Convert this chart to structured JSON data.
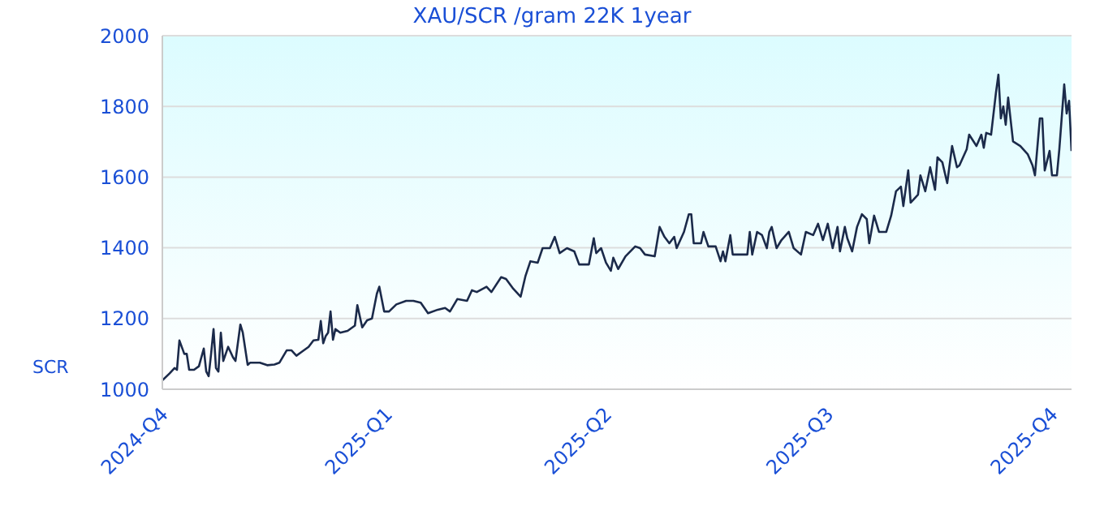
{
  "chart_data": {
    "type": "line",
    "title": "XAU/SCR /gram 22K 1year",
    "ylabel": "SCR",
    "x": [
      "2024-10-01",
      "2024-10-04",
      "2024-10-06",
      "2024-10-07",
      "2024-10-08",
      "2024-10-10",
      "2024-10-11",
      "2024-10-12",
      "2024-10-14",
      "2024-10-16",
      "2024-10-18",
      "2024-10-19",
      "2024-10-20",
      "2024-10-21",
      "2024-10-22",
      "2024-10-23",
      "2024-10-24",
      "2024-10-25",
      "2024-10-26",
      "2024-10-28",
      "2024-10-30",
      "2024-10-31",
      "2024-11-02",
      "2024-11-03",
      "2024-11-05",
      "2024-11-06",
      "2024-11-10",
      "2024-11-13",
      "2024-11-16",
      "2024-11-18",
      "2024-11-21",
      "2024-11-23",
      "2024-11-25",
      "2024-11-27",
      "2024-11-30",
      "2024-12-02",
      "2024-12-04",
      "2024-12-05",
      "2024-12-06",
      "2024-12-07",
      "2024-12-08",
      "2024-12-09",
      "2024-12-10",
      "2024-12-11",
      "2024-12-13",
      "2024-12-16",
      "2024-12-19",
      "2024-12-20",
      "2024-12-22",
      "2024-12-24",
      "2024-12-26",
      "2024-12-28",
      "2024-12-29",
      "2024-12-31",
      "2025-01-02",
      "2025-01-05",
      "2025-01-09",
      "2025-01-12",
      "2025-01-15",
      "2025-01-18",
      "2025-01-22",
      "2025-01-25",
      "2025-01-27",
      "2025-01-30",
      "2025-02-03",
      "2025-02-05",
      "2025-02-07",
      "2025-02-11",
      "2025-02-13",
      "2025-02-17",
      "2025-02-19",
      "2025-02-22",
      "2025-02-25",
      "2025-02-27",
      "2025-03-01",
      "2025-03-04",
      "2025-03-06",
      "2025-03-09",
      "2025-03-11",
      "2025-03-13",
      "2025-03-16",
      "2025-03-19",
      "2025-03-21",
      "2025-03-25",
      "2025-03-27",
      "2025-03-28",
      "2025-03-30",
      "2025-04-01",
      "2025-04-03",
      "2025-04-04",
      "2025-04-06",
      "2025-04-09",
      "2025-04-13",
      "2025-04-15",
      "2025-04-17",
      "2025-04-21",
      "2025-04-23",
      "2025-04-25",
      "2025-04-27",
      "2025-04-29",
      "2025-04-30",
      "2025-05-03",
      "2025-05-05",
      "2025-05-06",
      "2025-05-07",
      "2025-05-10",
      "2025-05-11",
      "2025-05-13",
      "2025-05-16",
      "2025-05-18",
      "2025-05-19",
      "2025-05-20",
      "2025-05-22",
      "2025-05-23",
      "2025-05-29",
      "2025-05-30",
      "2025-05-31",
      "2025-06-02",
      "2025-06-04",
      "2025-06-06",
      "2025-06-07",
      "2025-06-08",
      "2025-06-10",
      "2025-06-12",
      "2025-06-15",
      "2025-06-17",
      "2025-06-20",
      "2025-06-22",
      "2025-06-25",
      "2025-06-27",
      "2025-06-29",
      "2025-07-01",
      "2025-07-03",
      "2025-07-05",
      "2025-07-06",
      "2025-07-08",
      "2025-07-09",
      "2025-07-11",
      "2025-07-13",
      "2025-07-15",
      "2025-07-17",
      "2025-07-18",
      "2025-07-20",
      "2025-07-22",
      "2025-07-25",
      "2025-07-27",
      "2025-07-29",
      "2025-07-31",
      "2025-08-01",
      "2025-08-03",
      "2025-08-04",
      "2025-08-07",
      "2025-08-08",
      "2025-08-10",
      "2025-08-12",
      "2025-08-14",
      "2025-08-15",
      "2025-08-17",
      "2025-08-19",
      "2025-08-21",
      "2025-08-23",
      "2025-08-24",
      "2025-08-27",
      "2025-08-28",
      "2025-08-31",
      "2025-09-02",
      "2025-09-03",
      "2025-09-04",
      "2025-09-06",
      "2025-09-08",
      "2025-09-09",
      "2025-09-10",
      "2025-09-11",
      "2025-09-12",
      "2025-09-13",
      "2025-09-15",
      "2025-09-18",
      "2025-09-21",
      "2025-09-23",
      "2025-09-24",
      "2025-09-26",
      "2025-09-27",
      "2025-09-28",
      "2025-09-30",
      "2025-10-01",
      "2025-10-03",
      "2025-10-04",
      "2025-10-06",
      "2025-10-07",
      "2025-10-08",
      "2025-10-09"
    ],
    "series": [
      {
        "color": "#1b2a4a",
        "values": [
          1025,
          1045,
          1060,
          1055,
          1138,
          1100,
          1100,
          1055,
          1055,
          1065,
          1115,
          1050,
          1037,
          1100,
          1170,
          1060,
          1050,
          1160,
          1080,
          1120,
          1090,
          1080,
          1183,
          1160,
          1069,
          1075,
          1075,
          1068,
          1070,
          1075,
          1110,
          1110,
          1095,
          1105,
          1120,
          1138,
          1140,
          1193,
          1130,
          1150,
          1160,
          1220,
          1140,
          1170,
          1160,
          1165,
          1180,
          1238,
          1175,
          1195,
          1200,
          1270,
          1290,
          1220,
          1220,
          1240,
          1250,
          1250,
          1245,
          1215,
          1225,
          1230,
          1220,
          1255,
          1250,
          1280,
          1275,
          1290,
          1275,
          1317,
          1312,
          1284,
          1262,
          1321,
          1362,
          1358,
          1399,
          1399,
          1431,
          1385,
          1399,
          1390,
          1353,
          1353,
          1427,
          1385,
          1399,
          1358,
          1335,
          1372,
          1340,
          1376,
          1404,
          1399,
          1381,
          1376,
          1459,
          1431,
          1413,
          1431,
          1399,
          1445,
          1495,
          1495,
          1413,
          1413,
          1445,
          1404,
          1404,
          1362,
          1390,
          1362,
          1436,
          1381,
          1381,
          1445,
          1381,
          1445,
          1436,
          1399,
          1445,
          1459,
          1399,
          1422,
          1445,
          1399,
          1381,
          1445,
          1436,
          1468,
          1422,
          1468,
          1399,
          1459,
          1390,
          1459,
          1427,
          1390,
          1459,
          1495,
          1481,
          1413,
          1491,
          1445,
          1445,
          1491,
          1560,
          1573,
          1518,
          1619,
          1528,
          1550,
          1605,
          1560,
          1628,
          1564,
          1656,
          1642,
          1583,
          1688,
          1628,
          1633,
          1679,
          1720,
          1688,
          1720,
          1683,
          1725,
          1720,
          1839,
          1890,
          1766,
          1800,
          1748,
          1825,
          1701,
          1688,
          1665,
          1633,
          1605,
          1766,
          1766,
          1619,
          1674,
          1605,
          1605,
          1679,
          1862,
          1780,
          1816,
          1674
        ]
      }
    ],
    "xlim": [
      "2024-10-01",
      "2025-10-09"
    ],
    "xticks": [
      {
        "value": "2024-10-01",
        "label": "2024-Q4"
      },
      {
        "value": "2025-01-01",
        "label": "2025-Q1"
      },
      {
        "value": "2025-04-01",
        "label": "2025-Q2"
      },
      {
        "value": "2025-07-01",
        "label": "2025-Q3"
      },
      {
        "value": "2025-10-01",
        "label": "2025-Q4"
      }
    ],
    "ylim": [
      1000,
      2000
    ],
    "yticks": [
      1000,
      1200,
      1400,
      1600,
      1800,
      2000
    ],
    "grid": "y",
    "legend": false,
    "marker": "none",
    "line_style": "solid"
  }
}
